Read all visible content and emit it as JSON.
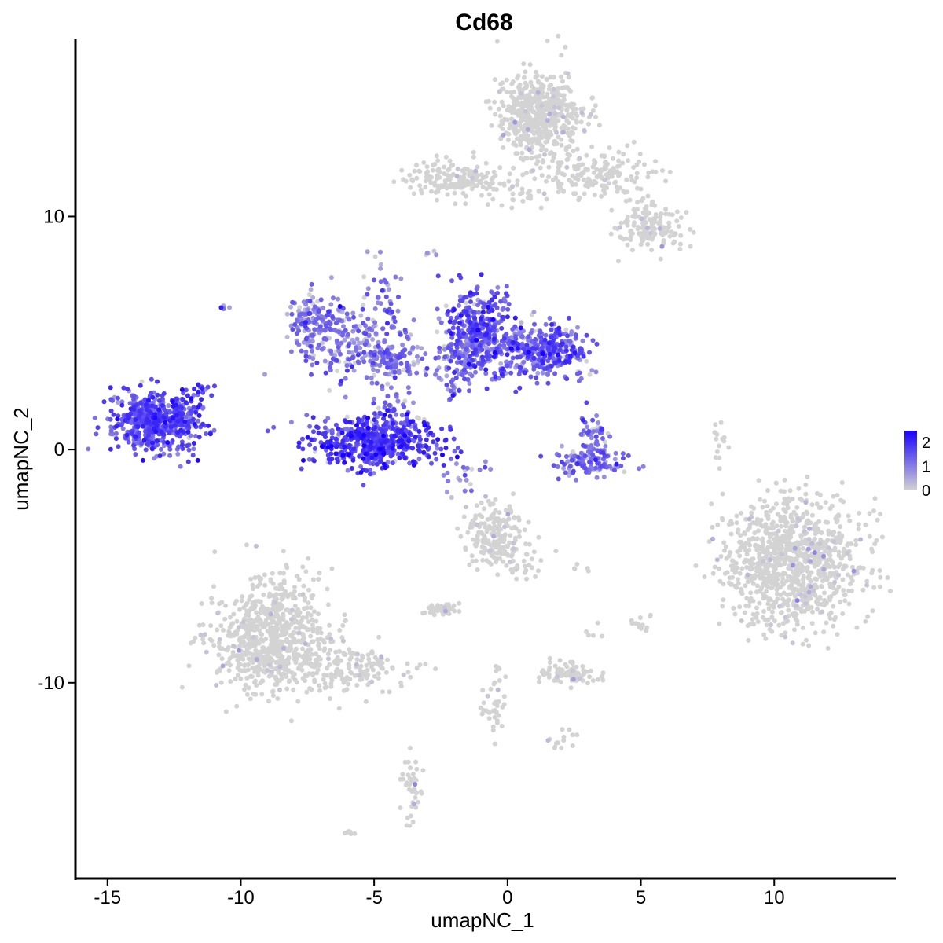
{
  "chart_data": {
    "type": "scatter",
    "title": "Cd68",
    "xlabel": "umapNC_1",
    "ylabel": "umapNC_2",
    "xlim": [
      -16.2,
      14.5
    ],
    "ylim": [
      -18.4,
      17.6
    ],
    "x_ticks": [
      -15,
      -10,
      -5,
      0,
      5,
      10
    ],
    "x_tick_labels": [
      "-15",
      "-10",
      "-5",
      "0",
      "5",
      "10"
    ],
    "y_ticks": [
      -10,
      0,
      10
    ],
    "y_tick_labels": [
      "-10",
      "0",
      "10"
    ],
    "grid": false,
    "legend": {
      "position": "right",
      "type": "colorbar",
      "range": [
        0,
        2.5
      ],
      "ticks": [
        0,
        1,
        2
      ],
      "tick_labels": [
        "0",
        "1",
        "2"
      ],
      "low_color": "#d3d3d3",
      "high_color": "#1a00ff"
    },
    "clusters": [
      {
        "cx": -13.3,
        "cy": 1.2,
        "sx": 0.75,
        "sy": 0.65,
        "n": 520,
        "expr_mean": 1.45,
        "expr_frac": 0.97
      },
      {
        "cx": -12.1,
        "cy": 1.4,
        "sx": 0.45,
        "sy": 0.7,
        "n": 60,
        "expr_mean": 1.6,
        "expr_frac": 0.95
      },
      {
        "cx": -11.7,
        "cy": 2.6,
        "sx": 0.3,
        "sy": 0.2,
        "n": 14,
        "expr_mean": 1.5,
        "expr_frac": 1.0
      },
      {
        "cx": -5.0,
        "cy": 0.3,
        "sx": 1.2,
        "sy": 0.55,
        "n": 520,
        "expr_mean": 1.75,
        "expr_frac": 0.97
      },
      {
        "cx": -4.3,
        "cy": 1.6,
        "sx": 0.4,
        "sy": 0.6,
        "n": 60,
        "expr_mean": 1.3,
        "expr_frac": 0.9
      },
      {
        "cx": -7.2,
        "cy": 5.4,
        "sx": 0.5,
        "sy": 0.6,
        "n": 130,
        "expr_mean": 1.1,
        "expr_frac": 0.95
      },
      {
        "cx": -5.7,
        "cy": 4.6,
        "sx": 1.1,
        "sy": 0.8,
        "n": 190,
        "expr_mean": 1.0,
        "expr_frac": 0.85
      },
      {
        "cx": -4.4,
        "cy": 3.8,
        "sx": 0.6,
        "sy": 0.4,
        "n": 100,
        "expr_mean": 1.2,
        "expr_frac": 0.9
      },
      {
        "cx": -4.6,
        "cy": 6.6,
        "sx": 0.35,
        "sy": 0.9,
        "n": 40,
        "expr_mean": 1.2,
        "expr_frac": 0.95
      },
      {
        "cx": -1.1,
        "cy": 5.2,
        "sx": 0.55,
        "sy": 0.9,
        "n": 300,
        "expr_mean": 1.5,
        "expr_frac": 0.95
      },
      {
        "cx": 0.6,
        "cy": 4.3,
        "sx": 0.9,
        "sy": 0.6,
        "n": 230,
        "expr_mean": 1.25,
        "expr_frac": 0.9
      },
      {
        "cx": 1.9,
        "cy": 4.2,
        "sx": 0.6,
        "sy": 0.5,
        "n": 170,
        "expr_mean": 1.4,
        "expr_frac": 0.9
      },
      {
        "cx": -1.7,
        "cy": 3.8,
        "sx": 0.7,
        "sy": 0.6,
        "n": 110,
        "expr_mean": 1.2,
        "expr_frac": 0.88
      },
      {
        "cx": 3.1,
        "cy": -0.6,
        "sx": 0.7,
        "sy": 0.3,
        "n": 120,
        "expr_mean": 1.2,
        "expr_frac": 0.85
      },
      {
        "cx": 3.3,
        "cy": 0.6,
        "sx": 0.3,
        "sy": 0.5,
        "n": 50,
        "expr_mean": 1.2,
        "expr_frac": 0.85
      },
      {
        "cx": 1.2,
        "cy": 14.3,
        "sx": 0.8,
        "sy": 0.9,
        "n": 560,
        "expr_mean": 0.05,
        "expr_frac": 0.04
      },
      {
        "cx": 3.5,
        "cy": 11.8,
        "sx": 1.1,
        "sy": 0.5,
        "n": 160,
        "expr_mean": 0.03,
        "expr_frac": 0.02
      },
      {
        "cx": -2.0,
        "cy": 11.6,
        "sx": 0.9,
        "sy": 0.35,
        "n": 160,
        "expr_mean": 0.03,
        "expr_frac": 0.02
      },
      {
        "cx": 0.5,
        "cy": 11.0,
        "sx": 0.9,
        "sy": 0.4,
        "n": 40,
        "expr_mean": 0.02,
        "expr_frac": 0.01
      },
      {
        "cx": 5.3,
        "cy": 9.5,
        "sx": 0.6,
        "sy": 0.5,
        "n": 150,
        "expr_mean": 0.03,
        "expr_frac": 0.02
      },
      {
        "cx": 10.7,
        "cy": -4.9,
        "sx": 1.25,
        "sy": 1.4,
        "n": 1000,
        "expr_mean": 0.06,
        "expr_frac": 0.04
      },
      {
        "cx": -8.8,
        "cy": -8.3,
        "sx": 1.1,
        "sy": 1.1,
        "n": 700,
        "expr_mean": 0.04,
        "expr_frac": 0.03
      },
      {
        "cx": -5.8,
        "cy": -9.4,
        "sx": 1.2,
        "sy": 0.5,
        "n": 160,
        "expr_mean": 0.04,
        "expr_frac": 0.03
      },
      {
        "cx": -8.6,
        "cy": -6.0,
        "sx": 0.5,
        "sy": 0.6,
        "n": 60,
        "expr_mean": 0.04,
        "expr_frac": 0.03
      },
      {
        "cx": -0.6,
        "cy": -3.8,
        "sx": 0.55,
        "sy": 0.7,
        "n": 190,
        "expr_mean": 0.04,
        "expr_frac": 0.04
      },
      {
        "cx": 0.7,
        "cy": -5.0,
        "sx": 0.4,
        "sy": 0.5,
        "n": 30,
        "expr_mean": 0.04,
        "expr_frac": 0.04
      },
      {
        "cx": -2.6,
        "cy": -6.9,
        "sx": 0.3,
        "sy": 0.2,
        "n": 45,
        "expr_mean": 0.04,
        "expr_frac": 0.05
      },
      {
        "cx": 2.2,
        "cy": -9.6,
        "sx": 0.6,
        "sy": 0.25,
        "n": 80,
        "expr_mean": 0.05,
        "expr_frac": 0.06
      },
      {
        "cx": -0.5,
        "cy": -10.8,
        "sx": 0.25,
        "sy": 0.8,
        "n": 40,
        "expr_mean": 0.04,
        "expr_frac": 0.05
      },
      {
        "cx": 2.2,
        "cy": -12.5,
        "sx": 0.3,
        "sy": 0.2,
        "n": 15,
        "expr_mean": 0.05,
        "expr_frac": 0.1
      },
      {
        "cx": -3.6,
        "cy": -14.6,
        "sx": 0.2,
        "sy": 0.7,
        "n": 40,
        "expr_mean": 0.04,
        "expr_frac": 0.05
      },
      {
        "cx": 8.0,
        "cy": 0.3,
        "sx": 0.15,
        "sy": 0.5,
        "n": 14,
        "expr_mean": 0.0,
        "expr_frac": 0.0
      },
      {
        "cx": 5.0,
        "cy": -7.4,
        "sx": 0.2,
        "sy": 0.2,
        "n": 12,
        "expr_mean": 0.03,
        "expr_frac": 0.05
      },
      {
        "cx": 3.3,
        "cy": -7.8,
        "sx": 0.15,
        "sy": 0.15,
        "n": 5,
        "expr_mean": 0.0,
        "expr_frac": 0.0
      },
      {
        "cx": 2.8,
        "cy": -5.0,
        "sx": 0.2,
        "sy": 0.15,
        "n": 5,
        "expr_mean": 0.0,
        "expr_frac": 0.0
      },
      {
        "cx": -10.6,
        "cy": 6.1,
        "sx": 0.1,
        "sy": 0.1,
        "n": 5,
        "expr_mean": 1.0,
        "expr_frac": 1.0
      },
      {
        "cx": -2.9,
        "cy": 8.5,
        "sx": 0.1,
        "sy": 0.1,
        "n": 5,
        "expr_mean": 0.4,
        "expr_frac": 0.5
      },
      {
        "cx": -2.1,
        "cy": 2.5,
        "sx": 0.15,
        "sy": 0.2,
        "n": 8,
        "expr_mean": 1.5,
        "expr_frac": 1.0
      },
      {
        "cx": -1.6,
        "cy": -1.0,
        "sx": 0.5,
        "sy": 0.35,
        "n": 20,
        "expr_mean": 1.0,
        "expr_frac": 0.9
      },
      {
        "cx": -5.9,
        "cy": -16.4,
        "sx": 0.15,
        "sy": 0.1,
        "n": 6,
        "expr_mean": 0.0,
        "expr_frac": 0.0
      }
    ]
  }
}
